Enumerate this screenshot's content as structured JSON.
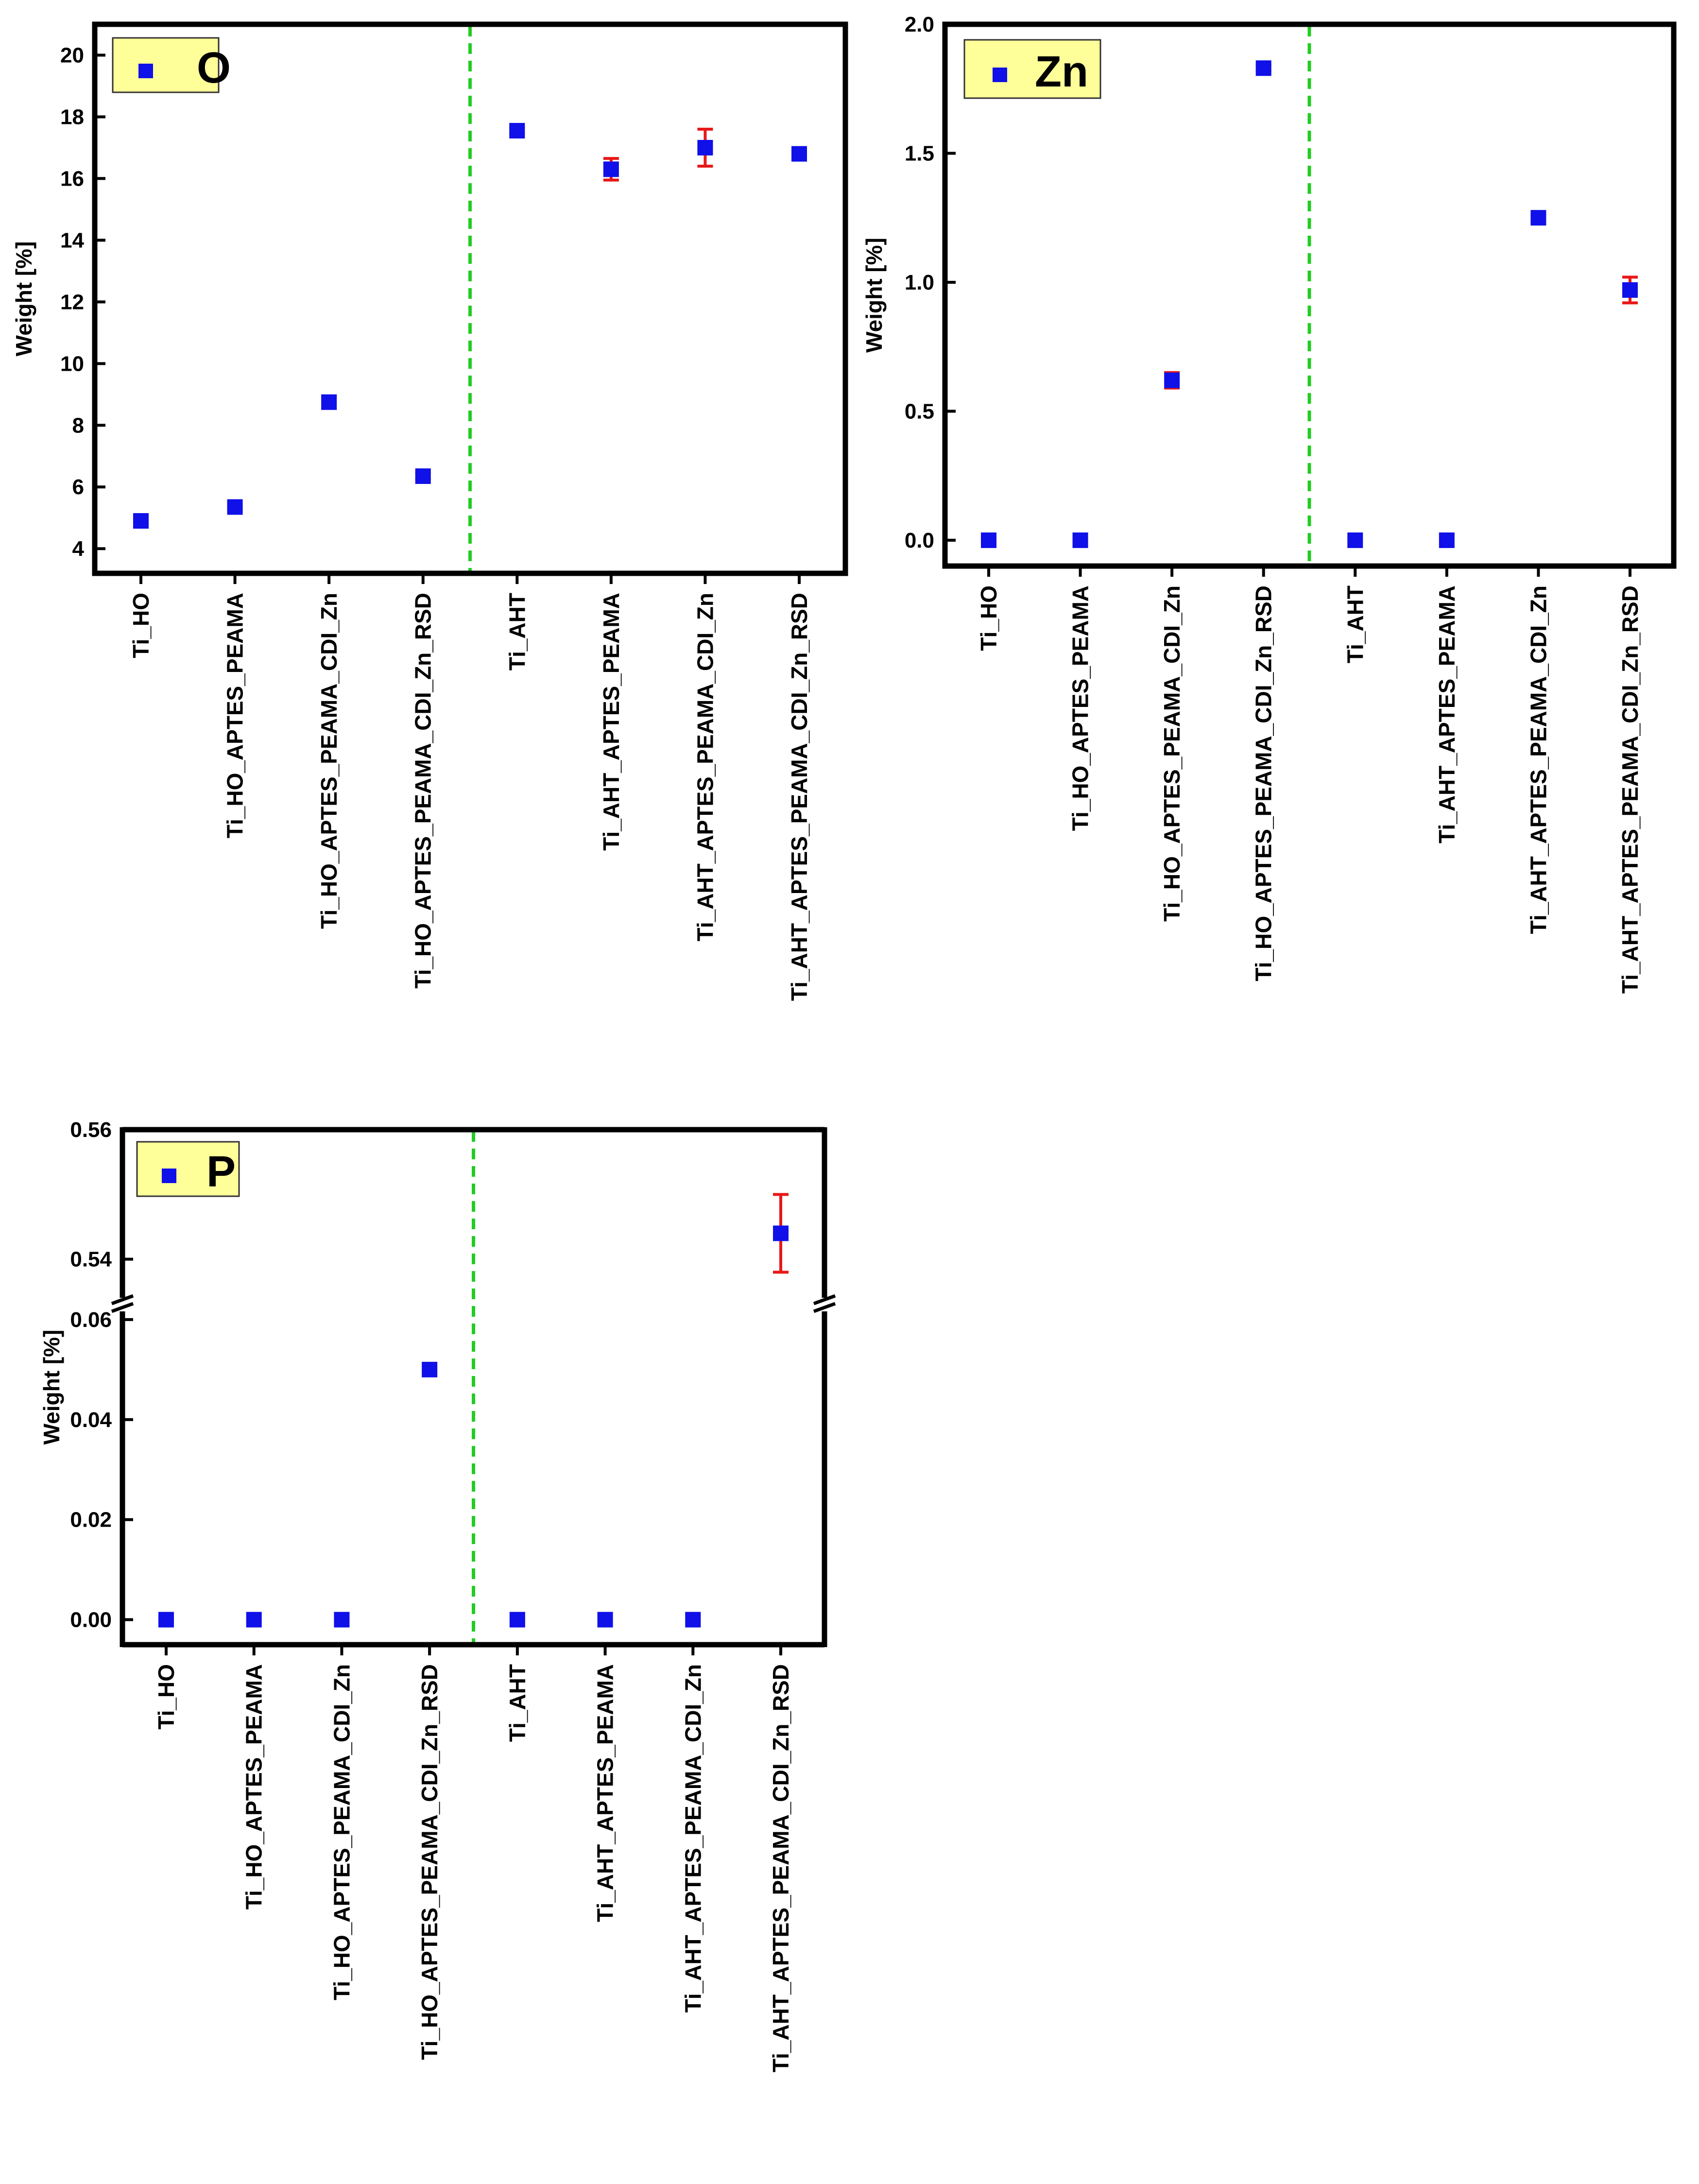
{
  "chart_data": [
    {
      "type": "scatter",
      "legend": "O",
      "ylabel": "Weight [%]",
      "ylim": [
        3.2,
        21
      ],
      "yticks": [
        4,
        6,
        8,
        10,
        12,
        14,
        16,
        18,
        20
      ],
      "ytick_labels": [
        "4",
        "6",
        "8",
        "10",
        "12",
        "14",
        "16",
        "18",
        "20"
      ],
      "categories": [
        "Ti_HO",
        "Ti_HO_APTES_PEAMA",
        "Ti_HO_APTES_PEAMA_CDI_Zn",
        "Ti_HO_APTES_PEAMA_CDI_Zn_RSD",
        "Ti_AHT",
        "Ti_AHT_APTES_PEAMA",
        "Ti_AHT_APTES_PEAMA_CDI_Zn",
        "Ti_AHT_APTES_PEAMA_CDI_Zn_RSD"
      ],
      "values": [
        4.9,
        5.35,
        8.75,
        6.35,
        17.55,
        16.3,
        17.0,
        16.8
      ],
      "errors": [
        0.05,
        0.1,
        0.2,
        0.1,
        0.1,
        0.35,
        0.6,
        0.1
      ],
      "divider_after_index": 3,
      "axis_break": false
    },
    {
      "type": "scatter",
      "legend": "Zn",
      "ylabel": "Weight [%]",
      "ylim": [
        -0.1,
        2.0
      ],
      "yticks": [
        0.0,
        0.5,
        1.0,
        1.5,
        2.0
      ],
      "ytick_labels": [
        "0.0",
        "0.5",
        "1.0",
        "1.5",
        "2.0"
      ],
      "categories": [
        "Ti_HO",
        "Ti_HO_APTES_PEAMA",
        "Ti_HO_APTES_PEAMA_CDI_Zn",
        "Ti_HO_APTES_PEAMA_CDI_Zn_RSD",
        "Ti_AHT",
        "Ti_AHT_APTES_PEAMA",
        "Ti_AHT_APTES_PEAMA_CDI_Zn",
        "Ti_AHT_APTES_PEAMA_CDI_Zn_RSD"
      ],
      "values": [
        0.0,
        0.0,
        0.62,
        1.83,
        0.0,
        0.0,
        1.25,
        0.97
      ],
      "errors": [
        0,
        0,
        0.03,
        0.01,
        0,
        0,
        0.01,
        0.05
      ],
      "divider_after_index": 3,
      "axis_break": false
    },
    {
      "type": "scatter",
      "legend": "P",
      "ylabel": "Weight [%]",
      "lower_ylim": [
        -0.005,
        0.063
      ],
      "upper_ylim": [
        0.533,
        0.56
      ],
      "yticks": [
        0.0,
        0.02,
        0.04,
        0.06,
        0.54,
        0.56
      ],
      "ytick_labels": [
        "0.00",
        "0.02",
        "0.04",
        "0.06",
        "0.54",
        "0.56"
      ],
      "categories": [
        "Ti_HO",
        "Ti_HO_APTES_PEAMA",
        "Ti_HO_APTES_PEAMA_CDI_Zn",
        "Ti_HO_APTES_PEAMA_CDI_Zn_RSD",
        "Ti_AHT",
        "Ti_AHT_APTES_PEAMA",
        "Ti_AHT_APTES_PEAMA_CDI_Zn",
        "Ti_AHT_APTES_PEAMA_CDI_Zn_RSD"
      ],
      "values": [
        0.0,
        0.0,
        0.0,
        0.05,
        0.0,
        0.0,
        0.0,
        0.544
      ],
      "errors": [
        0,
        0,
        0,
        0,
        0,
        0,
        0,
        0.006
      ],
      "divider_after_index": 3,
      "axis_break": true
    }
  ],
  "colors": {
    "marker": "#1010e8",
    "error_bar": "#e81818",
    "divider": "#22cc22",
    "legend_bg": "#ffff99",
    "axis": "#000000"
  }
}
